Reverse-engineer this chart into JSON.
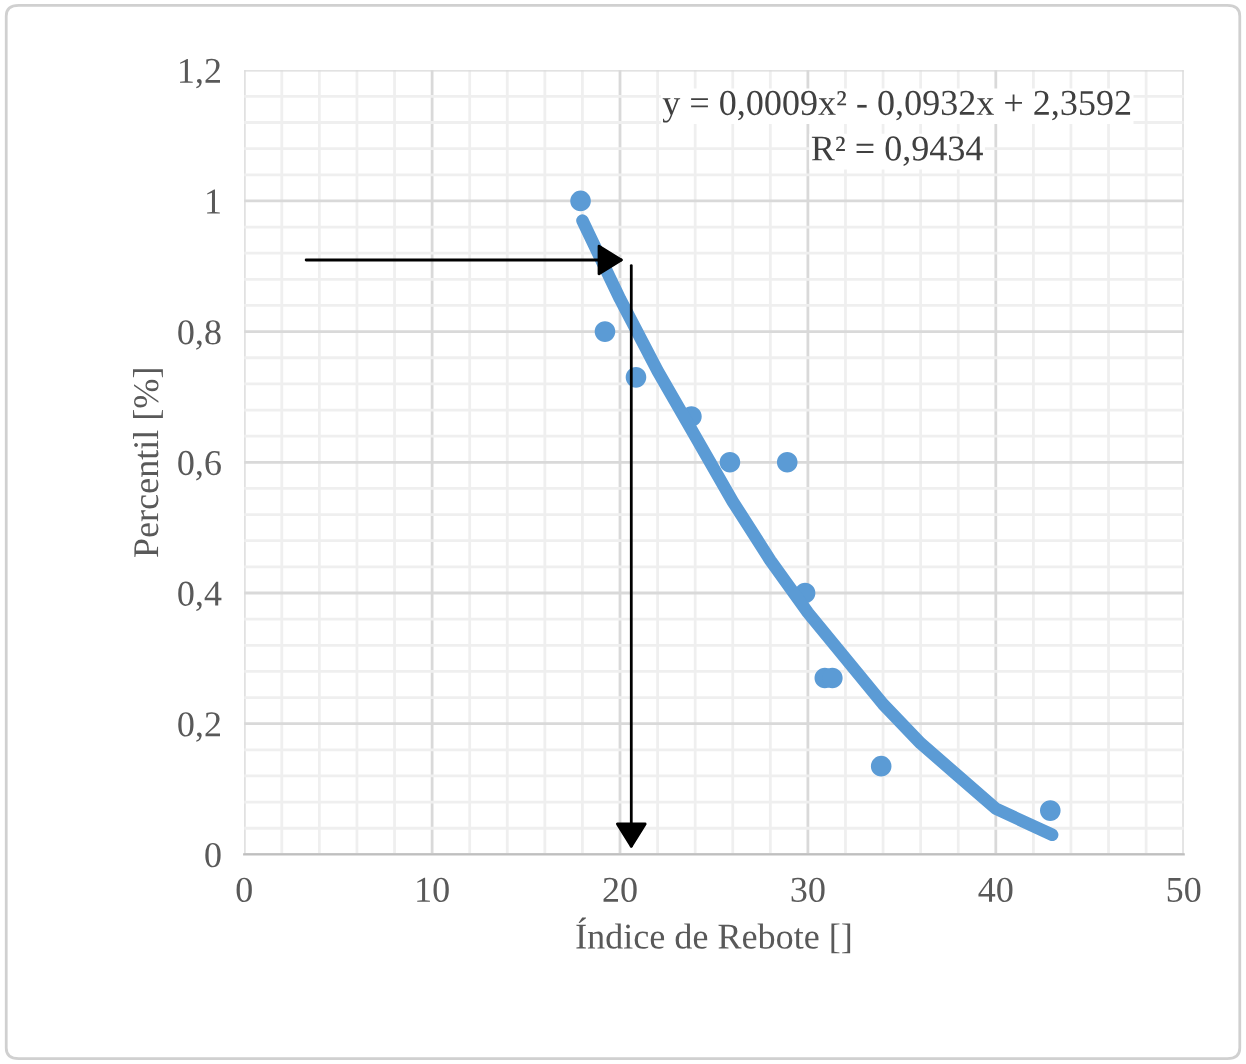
{
  "chart_data": {
    "type": "scatter",
    "xlabel": "Índice de Rebote []",
    "ylabel": "Percentil [%]",
    "annotations": [
      "y = 0,0009x² - 0,0932x + 2,3592",
      "R² = 0,9434"
    ],
    "series": [
      {
        "color": "#5b9bd5",
        "marker": "circle",
        "x": [
          17.9,
          19.2,
          20.85,
          23.8,
          25.85,
          28.9,
          29.85,
          30.9,
          31.3,
          33.9,
          42.9
        ],
        "values": [
          1.0,
          0.8,
          0.73,
          0.67,
          0.6,
          0.6,
          0.4,
          0.27,
          0.27,
          0.135,
          0.067
        ]
      },
      {
        "type": "line",
        "color": "#5b9bd5",
        "x": [
          18,
          20,
          22,
          24,
          26,
          28,
          30,
          32,
          34,
          36,
          38,
          40,
          43
        ],
        "values": [
          0.97,
          0.85,
          0.74,
          0.64,
          0.54,
          0.45,
          0.37,
          0.3,
          0.23,
          0.17,
          0.12,
          0.07,
          0.03
        ]
      }
    ],
    "xlim": [
      0,
      50
    ],
    "xticks": [
      0,
      10,
      20,
      30,
      40,
      50
    ],
    "ylim": [
      0,
      1.2
    ],
    "yticks": [
      0,
      {
        "value": 0.2,
        "label": "0,2"
      },
      {
        "value": 0.4,
        "label": "0,4"
      },
      {
        "value": 0.6,
        "label": "0,6"
      },
      {
        "value": 0.8,
        "label": "0,8"
      },
      1,
      {
        "value": 1.2,
        "label": "1,2"
      }
    ],
    "grid": true
  }
}
